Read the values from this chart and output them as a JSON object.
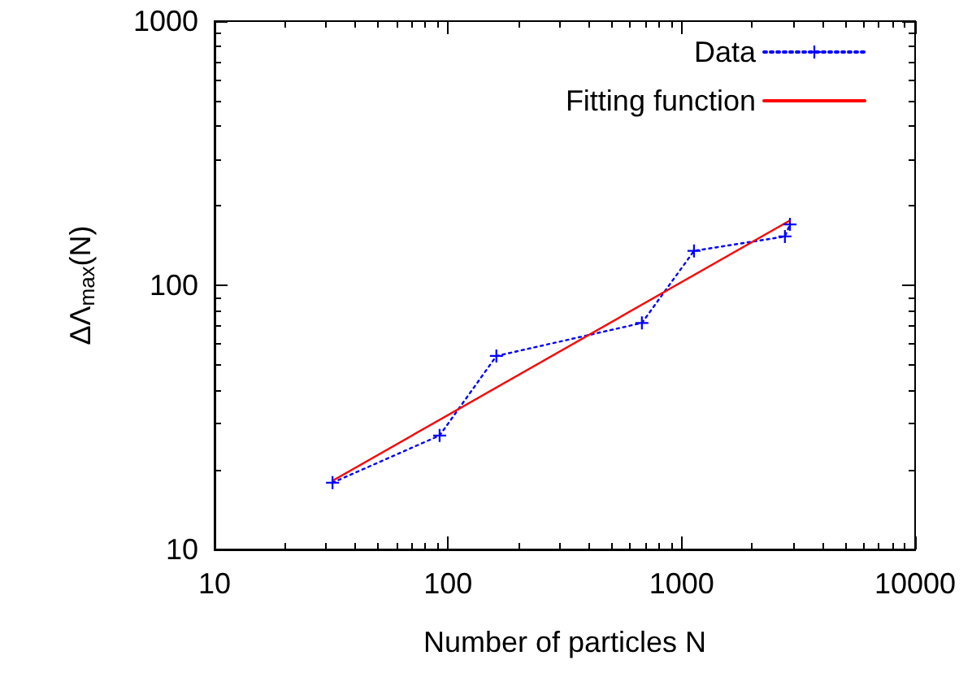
{
  "chart_data": {
    "type": "line",
    "xlabel": "Number of particles N",
    "ylabel": "ΔΛ$_{max}$(N)",
    "log": "xy",
    "xlim": [
      10,
      10000
    ],
    "ylim": [
      10,
      1000
    ],
    "xticks": [
      10,
      100,
      1000,
      10000
    ],
    "yticks": [
      10,
      100,
      1000
    ],
    "grid": false,
    "legend": "top right",
    "series": [
      {
        "name": "Data",
        "color": "#0000ff",
        "marker": "cross",
        "line_style": "dotted",
        "x": [
          32,
          92,
          161,
          676,
          1130,
          2770,
          2910
        ],
        "values": [
          17.9,
          27,
          54,
          72,
          135,
          153,
          170
        ]
      },
      {
        "name": "Fitting function",
        "color": "#ff0000",
        "marker": "none",
        "line_style": "solid",
        "x": [
          32,
          2910
        ],
        "values": [
          18.2,
          176
        ]
      }
    ]
  }
}
